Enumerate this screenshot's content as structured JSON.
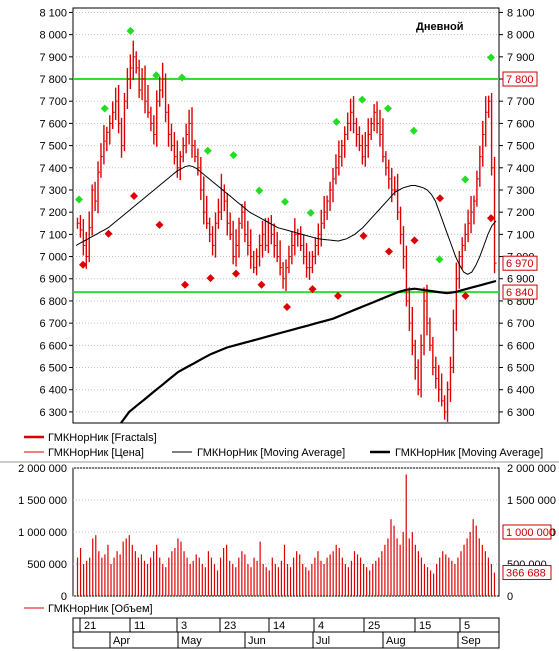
{
  "chart_data": [
    {
      "type": "line",
      "panel": "price",
      "title": "Дневной",
      "ylim": [
        6250,
        8120
      ],
      "y_ticks": [
        "8 100",
        "8 000",
        "7 900",
        "7 800",
        "7 700",
        "7 600",
        "7 500",
        "7 400",
        "7 300",
        "7 200",
        "7 100",
        "7 000",
        "6 900",
        "6 800",
        "6 700",
        "6 600",
        "6 500",
        "6 400",
        "6 300"
      ],
      "y_tick_values": [
        8100,
        8000,
        7900,
        7800,
        7700,
        7600,
        7500,
        7400,
        7300,
        7200,
        7100,
        7000,
        6900,
        6800,
        6700,
        6600,
        6500,
        6400,
        6300
      ],
      "grid": true,
      "horizontal_lines": [
        7800,
        6840
      ],
      "value_tags": [
        {
          "label": "7 800",
          "value": 7800,
          "color": "#cc0000"
        },
        {
          "label": "6 970",
          "value": 6970,
          "color": "#cc0000"
        },
        {
          "label": "6 840",
          "value": 6840,
          "color": "#cc0000"
        }
      ],
      "series": [
        {
          "name": "ГМКНорНик [Цена]",
          "color": "#dd0000",
          "kind": "hlc-bars",
          "values": [
            7150,
            7120,
            7050,
            7000,
            7130,
            7300,
            7250,
            7380,
            7450,
            7520,
            7560,
            7600,
            7650,
            7700,
            7600,
            7500,
            7700,
            7800,
            7850,
            7900,
            7850,
            7750,
            7800,
            7700,
            7650,
            7600,
            7550,
            7700,
            7750,
            7800,
            7650,
            7550,
            7500,
            7450,
            7400,
            7450,
            7500,
            7550,
            7600,
            7500,
            7450,
            7400,
            7300,
            7200,
            7150,
            7100,
            7050,
            7150,
            7200,
            7300,
            7250,
            7150,
            7100,
            7000,
            7050,
            7150,
            7200,
            7100,
            7050,
            7000,
            6950,
            7000,
            7050,
            7100,
            7050,
            7150,
            7100,
            7050,
            7000,
            6950,
            6900,
            6950,
            7000,
            7050,
            7100,
            7100,
            7050,
            7000,
            6950,
            6950,
            7000,
            7050,
            7100,
            7150,
            7200,
            7250,
            7300,
            7350,
            7400,
            7450,
            7500,
            7550,
            7600,
            7650,
            7600,
            7550,
            7500,
            7450,
            7500,
            7550,
            7600,
            7650,
            7600,
            7550,
            7450,
            7400,
            7350,
            7300,
            7300,
            7200,
            7100,
            7000,
            6800,
            6700,
            6600,
            6500,
            6400,
            6600,
            6800,
            6700,
            6600,
            6500,
            6450,
            6400,
            6350,
            6300,
            6400,
            6500,
            6700,
            6900,
            7000,
            7050,
            7100,
            7150,
            7200,
            7250,
            7350,
            7450,
            7550,
            7650,
            7700,
            7400,
            6970
          ],
          "note": "approximate daily closes"
        },
        {
          "name": "ГМКНорНик [Moving Average]",
          "color": "#000000",
          "kind": "thin-line",
          "values": [
            7050,
            7060,
            7070,
            7080,
            7090,
            7100,
            7110,
            7120,
            7130,
            7145,
            7160,
            7175,
            7190,
            7205,
            7220,
            7235,
            7250,
            7265,
            7280,
            7295,
            7310,
            7325,
            7340,
            7355,
            7370,
            7385,
            7395,
            7405,
            7410,
            7405,
            7395,
            7380,
            7365,
            7350,
            7335,
            7320,
            7305,
            7290,
            7275,
            7260,
            7245,
            7230,
            7215,
            7200,
            7190,
            7180,
            7170,
            7160,
            7150,
            7140,
            7130,
            7125,
            7120,
            7115,
            7110,
            7105,
            7100,
            7095,
            7090,
            7085,
            7080,
            7078,
            7076,
            7074,
            7072,
            7070,
            7075,
            7080,
            7090,
            7100,
            7115,
            7130,
            7150,
            7170,
            7190,
            7210,
            7230,
            7250,
            7270,
            7290,
            7300,
            7310,
            7315,
            7320,
            7320,
            7315,
            7310,
            7300,
            7280,
            7250,
            7200,
            7150,
            7100,
            7050,
            7000,
            6960,
            6930,
            6920,
            6930,
            6960,
            7000,
            7050,
            7100,
            7140,
            7160
          ],
          "note": "approximate short moving average"
        },
        {
          "name": "ГМКНорНик [Moving Average]",
          "color": "#000000",
          "kind": "thick-line",
          "values": [
            6250,
            6300,
            6330,
            6360,
            6390,
            6420,
            6450,
            6480,
            6500,
            6520,
            6540,
            6560,
            6575,
            6590,
            6600,
            6610,
            6620,
            6630,
            6640,
            6650,
            6660,
            6670,
            6680,
            6690,
            6700,
            6710,
            6720,
            6735,
            6750,
            6765,
            6780,
            6795,
            6810,
            6825,
            6840,
            6850,
            6855,
            6850,
            6845,
            6840,
            6835,
            6840,
            6850,
            6860,
            6870,
            6880,
            6890
          ],
          "note": "approximate long moving average"
        },
        {
          "name": "ГМКНорНик [Fractals]",
          "color": "#dd0000",
          "kind": "fractal-markers",
          "up_values": [
            7230,
            7640,
            7990,
            7790,
            7780,
            7450,
            7430,
            7270,
            7220,
            7170,
            7580,
            7680,
            7640,
            7540,
            6960,
            7320,
            7870
          ],
          "down_values": [
            6990,
            7130,
            7300,
            7170,
            6900,
            6930,
            6950,
            6900,
            6800,
            6880,
            6850,
            7120,
            7050,
            7100,
            7290,
            6850,
            7200
          ],
          "note": "approximate fractal marker levels"
        }
      ],
      "legend": {
        "placement": "bottom",
        "entries": [
          "ГМКНорНик [Fractals]",
          "ГМКНорНик [Цена]",
          "ГМКНорНик [Moving Average]",
          "ГМКНорНик [Moving Average]"
        ]
      }
    },
    {
      "type": "bar",
      "panel": "volume",
      "ylim": [
        0,
        2000000
      ],
      "y_ticks": [
        "2 000 000",
        "1 500 000",
        "1 000 000",
        "500 000",
        "0"
      ],
      "y_tick_values": [
        2000000,
        1500000,
        1000000,
        500000,
        0
      ],
      "grid": true,
      "value_tags": [
        {
          "label": "1 000 000",
          "value": 1000000,
          "color": "#cc0000"
        },
        {
          "label": "366 688",
          "value": 366688,
          "color": "#cc0000"
        }
      ],
      "series": [
        {
          "name": "ГМКНорНик [Объем]",
          "color": "#dd0000",
          "values": [
            600000,
            750000,
            500000,
            550000,
            600000,
            900000,
            950000,
            700000,
            600000,
            650000,
            800000,
            500000,
            600000,
            700000,
            650000,
            850000,
            900000,
            950000,
            800000,
            700000,
            600000,
            650000,
            550000,
            500000,
            600000,
            700000,
            800000,
            600000,
            500000,
            450000,
            600000,
            700000,
            750000,
            900000,
            850000,
            700000,
            600000,
            500000,
            550000,
            650000,
            600000,
            500000,
            450000,
            700000,
            600000,
            500000,
            400000,
            600000,
            750000,
            800000,
            550000,
            500000,
            450000,
            600000,
            700000,
            650000,
            500000,
            450000,
            600000,
            550000,
            850000,
            500000,
            450000,
            400000,
            600000,
            500000,
            450000,
            550000,
            800000,
            500000,
            450000,
            600000,
            700000,
            650000,
            500000,
            450000,
            400000,
            500000,
            600000,
            700000,
            550000,
            500000,
            600000,
            650000,
            700000,
            800000,
            750000,
            600000,
            500000,
            450000,
            550000,
            700000,
            650000,
            600000,
            500000,
            450000,
            400000,
            500000,
            550000,
            600000,
            700000,
            800000,
            900000,
            1200000,
            1100000,
            900000,
            800000,
            1000000,
            1900000,
            900000,
            1000000,
            800000,
            700000,
            600000,
            500000,
            450000,
            400000,
            350000,
            500000,
            600000,
            700000,
            650000,
            600000,
            550000,
            500000,
            600000,
            700000,
            800000,
            900000,
            1000000,
            1200000,
            1100000,
            900000,
            800000,
            700000,
            600000,
            500000,
            366688
          ],
          "note": "approximate daily volumes"
        }
      ],
      "legend": {
        "placement": "bottom",
        "entries": [
          "ГМКНорНик [Объем]"
        ]
      }
    }
  ],
  "date_axis": {
    "days": [
      "21",
      "11",
      "3",
      "23",
      "14",
      "4",
      "25",
      "15",
      "5"
    ],
    "months": [
      "Apr",
      "May",
      "Jun",
      "Jul",
      "Aug",
      "Sep"
    ]
  }
}
